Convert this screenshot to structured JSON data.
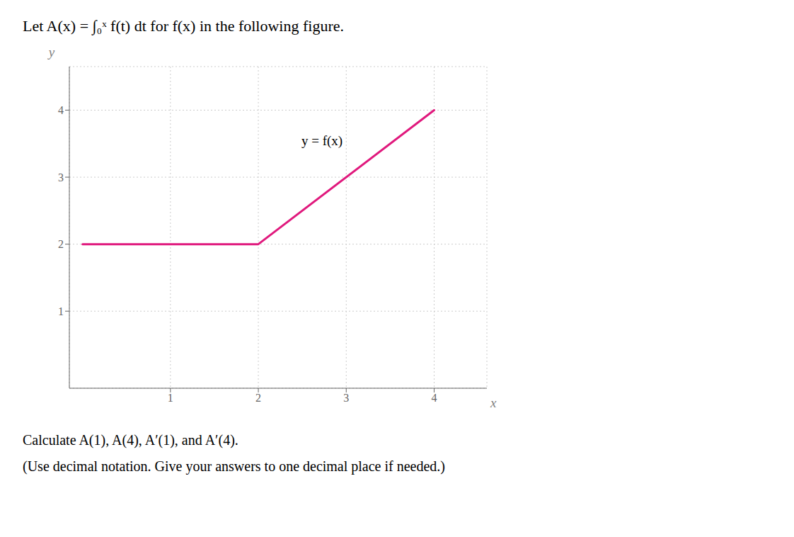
{
  "chart_data": {
    "type": "line",
    "title": "Let A(x) = ∫₀ˣ f(t) dt for f(x) in the following figure.",
    "x": [
      0,
      2,
      4
    ],
    "values": [
      2,
      2,
      4
    ],
    "color": "#e0197d",
    "xlabel": "x",
    "ylabel": "y",
    "xlim": [
      -0.15,
      4.6
    ],
    "ylim": [
      -0.15,
      4.65
    ],
    "xticks": [
      1,
      2,
      3,
      4
    ],
    "yticks": [
      1,
      2,
      3,
      4
    ],
    "grid": true,
    "annotations": [
      {
        "text": "y = f(x)",
        "x": 2.45,
        "y": 3.55
      },
      {
        "text": "Calculate A(1), A(4), A′(1), and A′(4)."
      },
      {
        "text": "(Use decimal notation. Give your answers to one decimal place if needed.)"
      }
    ]
  }
}
